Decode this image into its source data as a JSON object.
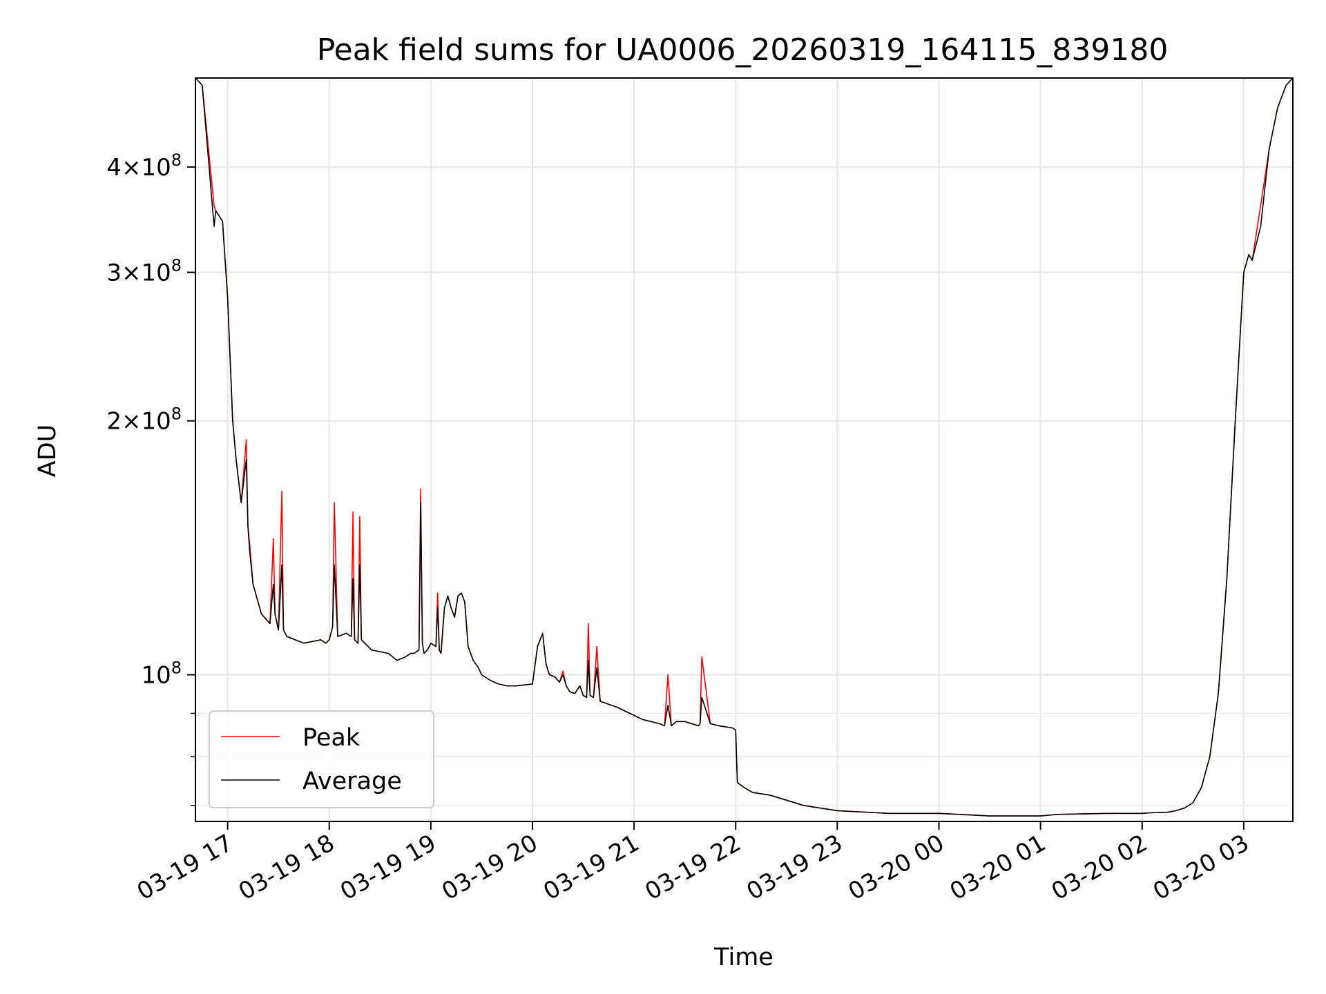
{
  "chart_data": {
    "type": "line",
    "title": "Peak field sums for UA0006_20260319_164115_839180",
    "xlabel": "Time",
    "ylabel": "ADU",
    "y_scale": "log",
    "grid": true,
    "legend": "lower-left",
    "xlim": [
      "2026-03-19 16:41",
      "2026-03-20 03:29"
    ],
    "ylim": [
      67000000,
      510000000
    ],
    "x_ticks": [
      "2026-03-19 17:00",
      "2026-03-19 18:00",
      "2026-03-19 19:00",
      "2026-03-19 20:00",
      "2026-03-19 21:00",
      "2026-03-19 22:00",
      "2026-03-19 23:00",
      "2026-03-20 00:00",
      "2026-03-20 01:00",
      "2026-03-20 02:00",
      "2026-03-20 03:00"
    ],
    "x_tick_labels": [
      "03-19 17",
      "03-19 18",
      "03-19 19",
      "03-19 20",
      "03-19 21",
      "03-19 22",
      "03-19 23",
      "03-20 00",
      "03-20 01",
      "03-20 02",
      "03-20 03"
    ],
    "y_ticks": [
      {
        "value": 100000000,
        "base": "10",
        "exp": "8"
      },
      {
        "value": 200000000,
        "mantissa": "2",
        "base": "10",
        "exp": "8"
      },
      {
        "value": 300000000,
        "mantissa": "3",
        "base": "10",
        "exp": "8"
      },
      {
        "value": 400000000,
        "mantissa": "4",
        "base": "10",
        "exp": "8"
      }
    ],
    "y_minor_ticks": [
      70000000,
      80000000,
      90000000
    ],
    "series": [
      {
        "name": "Peak",
        "color": "#ff0000",
        "x": [
          "2026-03-19 16:41",
          "2026-03-19 16:45",
          "2026-03-19 16:52",
          "2026-03-19 16:53",
          "2026-03-19 16:57",
          "2026-03-19 17:00",
          "2026-03-19 17:03",
          "2026-03-19 17:05",
          "2026-03-19 17:08",
          "2026-03-19 17:11",
          "2026-03-19 17:12",
          "2026-03-19 17:13",
          "2026-03-19 17:15",
          "2026-03-19 17:20",
          "2026-03-19 17:25",
          "2026-03-19 17:27",
          "2026-03-19 17:28",
          "2026-03-19 17:30",
          "2026-03-19 17:32",
          "2026-03-19 17:33",
          "2026-03-19 17:35",
          "2026-03-19 17:45",
          "2026-03-19 17:55",
          "2026-03-19 17:58",
          "2026-03-19 18:00",
          "2026-03-19 18:02",
          "2026-03-19 18:03",
          "2026-03-19 18:05",
          "2026-03-19 18:10",
          "2026-03-19 18:13",
          "2026-03-19 18:14",
          "2026-03-19 18:15",
          "2026-03-19 18:17",
          "2026-03-19 18:18",
          "2026-03-19 18:19",
          "2026-03-19 18:25",
          "2026-03-19 18:35",
          "2026-03-19 18:40",
          "2026-03-19 18:45",
          "2026-03-19 18:48",
          "2026-03-19 18:50",
          "2026-03-19 18:53",
          "2026-03-19 18:54",
          "2026-03-19 18:55",
          "2026-03-19 18:56",
          "2026-03-19 18:58",
          "2026-03-19 19:00",
          "2026-03-19 19:03",
          "2026-03-19 19:04",
          "2026-03-19 19:05",
          "2026-03-19 19:06",
          "2026-03-19 19:08",
          "2026-03-19 19:10",
          "2026-03-19 19:12",
          "2026-03-19 19:14",
          "2026-03-19 19:16",
          "2026-03-19 19:18",
          "2026-03-19 19:20",
          "2026-03-19 19:22",
          "2026-03-19 19:25",
          "2026-03-19 19:28",
          "2026-03-19 19:30",
          "2026-03-19 19:35",
          "2026-03-19 19:40",
          "2026-03-19 19:45",
          "2026-03-19 19:50",
          "2026-03-19 20:00",
          "2026-03-19 20:03",
          "2026-03-19 20:06",
          "2026-03-19 20:08",
          "2026-03-19 20:10",
          "2026-03-19 20:13",
          "2026-03-19 20:16",
          "2026-03-19 20:18",
          "2026-03-19 20:20",
          "2026-03-19 20:22",
          "2026-03-19 20:25",
          "2026-03-19 20:28",
          "2026-03-19 20:30",
          "2026-03-19 20:32",
          "2026-03-19 20:33",
          "2026-03-19 20:34",
          "2026-03-19 20:36",
          "2026-03-19 20:38",
          "2026-03-19 20:40",
          "2026-03-19 20:50",
          "2026-03-19 21:00",
          "2026-03-19 21:05",
          "2026-03-19 21:10",
          "2026-03-19 21:15",
          "2026-03-19 21:18",
          "2026-03-19 21:20",
          "2026-03-19 21:22",
          "2026-03-19 21:25",
          "2026-03-19 21:30",
          "2026-03-19 21:38",
          "2026-03-19 21:39",
          "2026-03-19 21:40",
          "2026-03-19 21:45",
          "2026-03-19 21:50",
          "2026-03-19 21:58",
          "2026-03-19 22:00",
          "2026-03-19 22:01",
          "2026-03-19 22:05",
          "2026-03-19 22:10",
          "2026-03-19 22:20",
          "2026-03-19 22:30",
          "2026-03-19 22:40",
          "2026-03-19 23:00",
          "2026-03-19 23:30",
          "2026-03-20 00:00",
          "2026-03-20 00:30",
          "2026-03-20 01:00",
          "2026-03-20 01:10",
          "2026-03-20 01:40",
          "2026-03-20 02:00",
          "2026-03-20 02:05",
          "2026-03-20 02:15",
          "2026-03-20 02:20",
          "2026-03-20 02:25",
          "2026-03-20 02:30",
          "2026-03-20 02:35",
          "2026-03-20 02:40",
          "2026-03-20 02:45",
          "2026-03-20 02:50",
          "2026-03-20 02:55",
          "2026-03-20 03:00",
          "2026-03-20 03:03",
          "2026-03-20 03:05",
          "2026-03-20 03:10",
          "2026-03-20 03:15",
          "2026-03-20 03:20",
          "2026-03-20 03:25",
          "2026-03-20 03:29"
        ],
        "y": [
          510000000,
          500000000,
          360000000,
          355000000,
          345000000,
          280000000,
          200000000,
          180000000,
          160000000,
          190000000,
          150000000,
          143000000,
          128000000,
          118000000,
          115000000,
          145000000,
          118000000,
          113000000,
          165000000,
          113000000,
          111000000,
          109000000,
          110000000,
          109000000,
          110000000,
          114000000,
          160000000,
          111000000,
          112000000,
          111000000,
          156000000,
          110000000,
          109000000,
          154000000,
          110000000,
          107000000,
          106000000,
          104000000,
          105000000,
          106000000,
          106000000,
          107000000,
          166000000,
          109000000,
          106000000,
          107000000,
          109000000,
          108000000,
          125000000,
          107000000,
          106000000,
          120000000,
          124000000,
          120000000,
          117000000,
          124000000,
          125000000,
          122000000,
          108000000,
          104000000,
          102000000,
          100000000,
          98500000,
          97500000,
          97000000,
          97000000,
          97500000,
          108000000,
          112000000,
          103000000,
          100000000,
          99500000,
          98000000,
          101000000,
          97000000,
          95500000,
          95000000,
          97000000,
          94500000,
          94000000,
          115000000,
          94500000,
          94000000,
          108000000,
          93000000,
          91500000,
          89500000,
          88500000,
          88000000,
          87500000,
          87000000,
          100000000,
          87000000,
          88000000,
          88000000,
          87000000,
          87500000,
          105000000,
          87500000,
          87000000,
          86500000,
          86000000,
          74500000,
          73500000,
          72500000,
          72000000,
          71000000,
          70000000,
          69000000,
          68500000,
          68500000,
          68000000,
          68000000,
          68300000,
          68500000,
          68500000,
          68600000,
          68700000,
          69000000,
          69500000,
          70500000,
          73500000,
          80000000,
          95000000,
          130000000,
          200000000,
          300000000,
          315000000,
          310000000,
          360000000,
          420000000,
          470000000,
          500000000,
          510000000
        ]
      },
      {
        "name": "Average",
        "color": "#000000",
        "x": [
          "2026-03-19 16:41",
          "2026-03-19 16:45",
          "2026-03-19 16:52",
          "2026-03-19 16:53",
          "2026-03-19 16:57",
          "2026-03-19 17:00",
          "2026-03-19 17:03",
          "2026-03-19 17:05",
          "2026-03-19 17:08",
          "2026-03-19 17:11",
          "2026-03-19 17:12",
          "2026-03-19 17:13",
          "2026-03-19 17:15",
          "2026-03-19 17:20",
          "2026-03-19 17:25",
          "2026-03-19 17:27",
          "2026-03-19 17:28",
          "2026-03-19 17:30",
          "2026-03-19 17:32",
          "2026-03-19 17:33",
          "2026-03-19 17:35",
          "2026-03-19 17:45",
          "2026-03-19 17:55",
          "2026-03-19 17:58",
          "2026-03-19 18:00",
          "2026-03-19 18:02",
          "2026-03-19 18:03",
          "2026-03-19 18:05",
          "2026-03-19 18:10",
          "2026-03-19 18:13",
          "2026-03-19 18:14",
          "2026-03-19 18:15",
          "2026-03-19 18:17",
          "2026-03-19 18:18",
          "2026-03-19 18:19",
          "2026-03-19 18:25",
          "2026-03-19 18:35",
          "2026-03-19 18:40",
          "2026-03-19 18:45",
          "2026-03-19 18:48",
          "2026-03-19 18:50",
          "2026-03-19 18:53",
          "2026-03-19 18:54",
          "2026-03-19 18:55",
          "2026-03-19 18:56",
          "2026-03-19 18:58",
          "2026-03-19 19:00",
          "2026-03-19 19:03",
          "2026-03-19 19:04",
          "2026-03-19 19:05",
          "2026-03-19 19:06",
          "2026-03-19 19:08",
          "2026-03-19 19:10",
          "2026-03-19 19:12",
          "2026-03-19 19:14",
          "2026-03-19 19:16",
          "2026-03-19 19:18",
          "2026-03-19 19:20",
          "2026-03-19 19:22",
          "2026-03-19 19:25",
          "2026-03-19 19:28",
          "2026-03-19 19:30",
          "2026-03-19 19:35",
          "2026-03-19 19:40",
          "2026-03-19 19:45",
          "2026-03-19 19:50",
          "2026-03-19 20:00",
          "2026-03-19 20:03",
          "2026-03-19 20:06",
          "2026-03-19 20:08",
          "2026-03-19 20:10",
          "2026-03-19 20:13",
          "2026-03-19 20:16",
          "2026-03-19 20:18",
          "2026-03-19 20:20",
          "2026-03-19 20:22",
          "2026-03-19 20:25",
          "2026-03-19 20:28",
          "2026-03-19 20:30",
          "2026-03-19 20:32",
          "2026-03-19 20:33",
          "2026-03-19 20:34",
          "2026-03-19 20:36",
          "2026-03-19 20:38",
          "2026-03-19 20:40",
          "2026-03-19 20:50",
          "2026-03-19 21:00",
          "2026-03-19 21:05",
          "2026-03-19 21:10",
          "2026-03-19 21:15",
          "2026-03-19 21:18",
          "2026-03-19 21:20",
          "2026-03-19 21:22",
          "2026-03-19 21:25",
          "2026-03-19 21:30",
          "2026-03-19 21:38",
          "2026-03-19 21:39",
          "2026-03-19 21:40",
          "2026-03-19 21:45",
          "2026-03-19 21:50",
          "2026-03-19 21:58",
          "2026-03-19 22:00",
          "2026-03-19 22:01",
          "2026-03-19 22:05",
          "2026-03-19 22:10",
          "2026-03-19 22:20",
          "2026-03-19 22:30",
          "2026-03-19 22:40",
          "2026-03-19 23:00",
          "2026-03-19 23:30",
          "2026-03-20 00:00",
          "2026-03-20 00:30",
          "2026-03-20 01:00",
          "2026-03-20 01:10",
          "2026-03-20 01:40",
          "2026-03-20 02:00",
          "2026-03-20 02:05",
          "2026-03-20 02:15",
          "2026-03-20 02:20",
          "2026-03-20 02:25",
          "2026-03-20 02:30",
          "2026-03-20 02:35",
          "2026-03-20 02:40",
          "2026-03-20 02:45",
          "2026-03-20 02:50",
          "2026-03-20 02:55",
          "2026-03-20 03:00",
          "2026-03-20 03:03",
          "2026-03-20 03:05",
          "2026-03-20 03:10",
          "2026-03-20 03:15",
          "2026-03-20 03:20",
          "2026-03-20 03:25",
          "2026-03-20 03:29"
        ],
        "y": [
          510000000,
          500000000,
          340000000,
          355000000,
          345000000,
          280000000,
          200000000,
          180000000,
          160000000,
          180000000,
          150000000,
          140000000,
          128000000,
          118000000,
          115000000,
          128000000,
          118000000,
          113000000,
          135000000,
          113000000,
          111000000,
          109000000,
          110000000,
          109000000,
          110000000,
          114000000,
          135000000,
          111000000,
          112000000,
          111000000,
          130000000,
          110000000,
          109000000,
          135000000,
          110000000,
          107000000,
          106000000,
          104000000,
          105000000,
          106000000,
          106000000,
          107000000,
          160000000,
          109000000,
          106000000,
          107000000,
          109000000,
          108000000,
          120000000,
          107000000,
          106000000,
          120000000,
          124000000,
          120000000,
          117000000,
          124000000,
          125000000,
          122000000,
          108000000,
          104000000,
          102000000,
          100000000,
          98500000,
          97500000,
          97000000,
          97000000,
          97500000,
          108000000,
          112000000,
          103000000,
          100000000,
          99500000,
          98000000,
          100000000,
          97000000,
          95500000,
          95000000,
          97000000,
          94500000,
          94000000,
          104000000,
          94500000,
          94000000,
          102000000,
          93000000,
          91500000,
          89500000,
          88500000,
          88000000,
          87500000,
          87000000,
          92000000,
          87000000,
          88000000,
          88000000,
          87000000,
          87500000,
          94000000,
          87500000,
          87000000,
          86500000,
          86000000,
          74500000,
          73500000,
          72500000,
          72000000,
          71000000,
          70000000,
          69000000,
          68500000,
          68500000,
          68000000,
          68000000,
          68300000,
          68500000,
          68500000,
          68600000,
          68700000,
          69000000,
          69500000,
          70500000,
          73500000,
          80000000,
          95000000,
          130000000,
          200000000,
          300000000,
          315000000,
          310000000,
          340000000,
          420000000,
          470000000,
          500000000,
          510000000
        ]
      }
    ]
  }
}
